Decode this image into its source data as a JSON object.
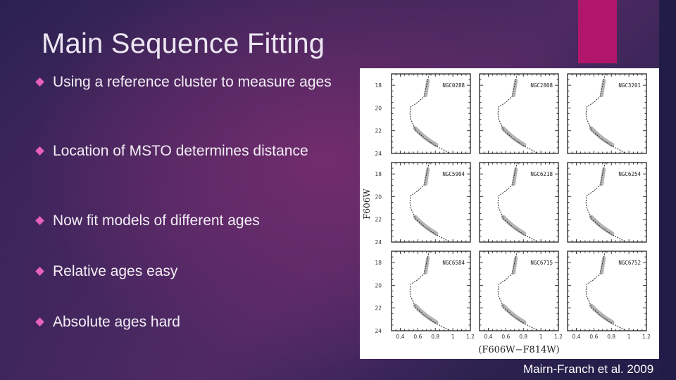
{
  "slide": {
    "title": "Main Sequence Fitting",
    "colors": {
      "accent_bar": "#b0176b",
      "bullet": "#e862b9",
      "text": "#f3eef6"
    },
    "bullets": [
      {
        "text": "Using a reference cluster to measure ages"
      },
      {
        "text": "Location of MSTO determines distance"
      },
      {
        "text": "Now fit models of different ages"
      },
      {
        "text": "Relative ages easy"
      },
      {
        "text": "Absolute ages hard"
      }
    ],
    "caption": "Mairn-Franch et al. 2009"
  },
  "chart_data": {
    "type": "scatter",
    "title": "",
    "layout": "3x3 grid of color-magnitude diagrams with fitted isochrones",
    "xlabel": "(F606W−F814W)",
    "ylabel": "F606W",
    "xlim": [
      0.3,
      1.2
    ],
    "ylim": [
      24,
      17
    ],
    "x_ticks": [
      "0.4",
      "0.6",
      "0.8",
      "1",
      "1.2"
    ],
    "y_ticks": [
      "18",
      "20",
      "22",
      "24"
    ],
    "grid": false,
    "panels": [
      {
        "name": "NGC0288"
      },
      {
        "name": "NGC2808"
      },
      {
        "name": "NGC3201"
      },
      {
        "name": "NGC5904"
      },
      {
        "name": "NGC6218"
      },
      {
        "name": "NGC6254"
      },
      {
        "name": "NGC6584"
      },
      {
        "name": "NGC6715"
      },
      {
        "name": "NGC6752"
      }
    ],
    "isochrone_approx": {
      "x": [
        0.73,
        0.7,
        0.67,
        0.6,
        0.52,
        0.51,
        0.52,
        0.58,
        0.7,
        0.82,
        0.97
      ],
      "y": [
        17.0,
        18.0,
        19.0,
        19.5,
        19.9,
        20.5,
        21.0,
        22.0,
        22.8,
        23.4,
        24.0
      ]
    }
  }
}
